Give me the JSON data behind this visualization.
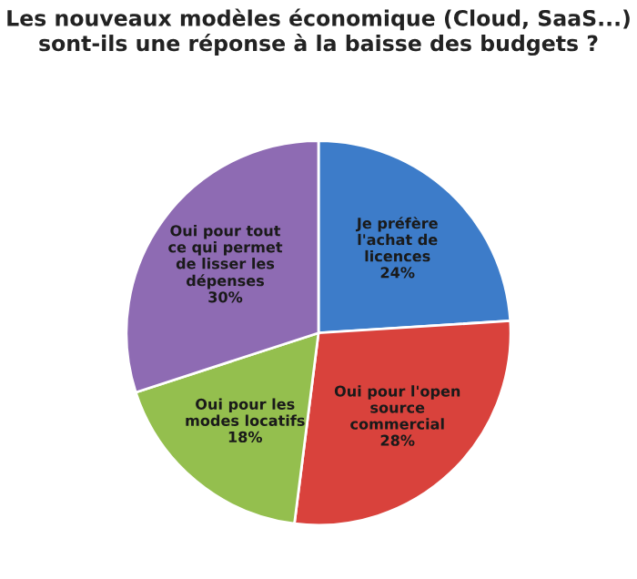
{
  "chart_data": {
    "type": "pie",
    "title": "Les nouveaux modèles économique (Cloud, SaaS...) sont-ils une réponse à la baisse des budgets ?",
    "categories": [
      "Je préfère l'achat de licences",
      "Oui pour l'open source commercial",
      "Oui pour les modes locatifs",
      "Oui pour tout ce qui permet de lisser les dépenses"
    ],
    "values": [
      24,
      28,
      18,
      30
    ],
    "value_labels": [
      "24%",
      "28%",
      "18%",
      "30%"
    ],
    "colors": [
      "#3d7cc9",
      "#d9423c",
      "#94bf4e",
      "#8e6bb3"
    ],
    "legend": false
  }
}
